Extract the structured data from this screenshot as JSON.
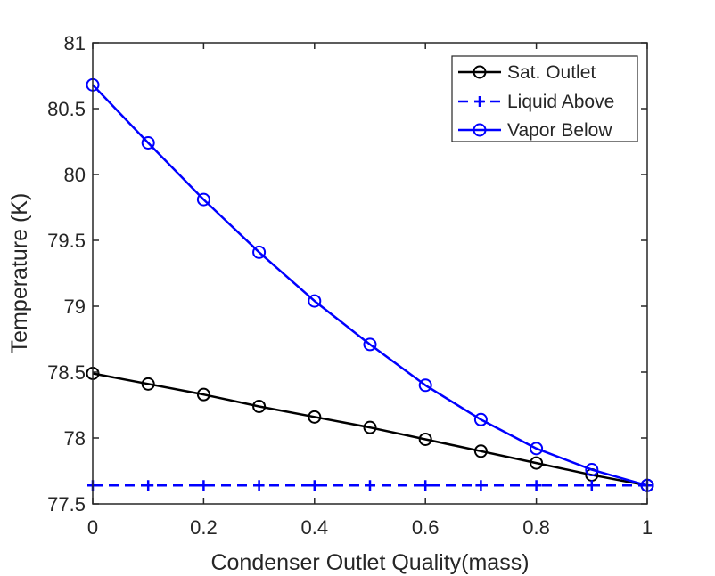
{
  "chart_data": {
    "type": "line",
    "xlabel": "Condenser Outlet Quality(mass)",
    "ylabel": "Temperature (K)",
    "xlim": [
      0,
      1
    ],
    "ylim": [
      77.5,
      81
    ],
    "x_ticks": [
      0,
      0.2,
      0.4,
      0.6,
      0.8,
      1
    ],
    "x_tick_labels": [
      "0",
      "0.2",
      "0.4",
      "0.6",
      "0.8",
      "1"
    ],
    "y_ticks": [
      77.5,
      78,
      78.5,
      79,
      79.5,
      80,
      80.5,
      81
    ],
    "y_tick_labels": [
      "77.5",
      "78",
      "78.5",
      "79",
      "79.5",
      "80",
      "80.5",
      "81"
    ],
    "grid": false,
    "legend_position": "top-right",
    "x": [
      0,
      0.1,
      0.2,
      0.3,
      0.4,
      0.5,
      0.6,
      0.7,
      0.8,
      0.9,
      1.0
    ],
    "series": [
      {
        "name": "Sat. Outlet",
        "color": "#000000",
        "line_style": "solid",
        "marker": "circle",
        "values": [
          78.49,
          78.41,
          78.33,
          78.24,
          78.16,
          78.08,
          77.99,
          77.9,
          77.81,
          77.72,
          77.64
        ]
      },
      {
        "name": "Liquid Above",
        "color": "#0000ff",
        "line_style": "dashed",
        "marker": "plus",
        "values": [
          77.64,
          77.64,
          77.64,
          77.64,
          77.64,
          77.64,
          77.64,
          77.64,
          77.64,
          77.64,
          77.64
        ]
      },
      {
        "name": "Vapor Below",
        "color": "#0000ff",
        "line_style": "solid",
        "marker": "circle",
        "values": [
          80.68,
          80.24,
          79.81,
          79.41,
          79.04,
          78.71,
          78.4,
          78.14,
          77.92,
          77.76,
          77.64
        ]
      }
    ]
  }
}
